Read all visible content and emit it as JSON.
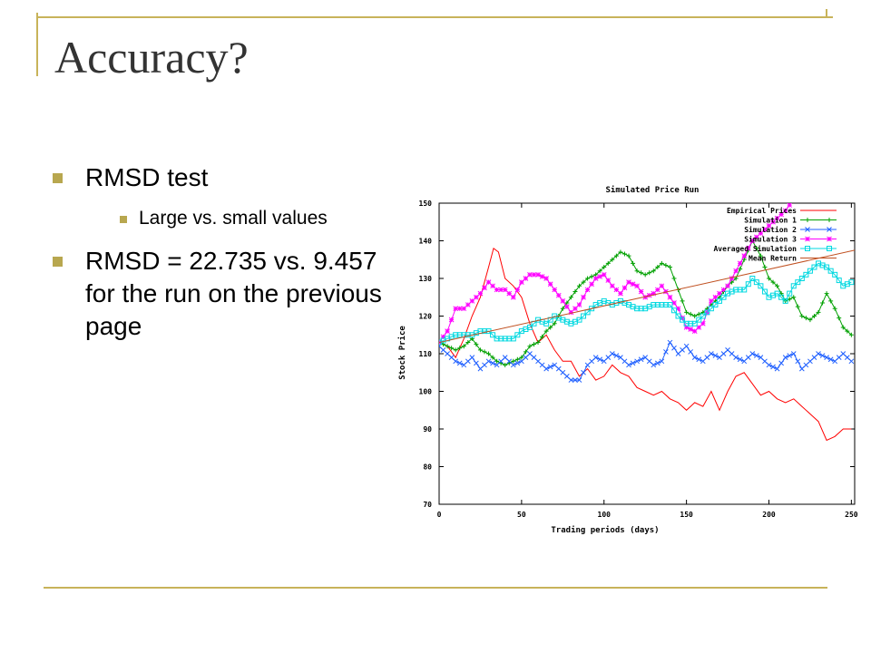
{
  "slide": {
    "title": "Accuracy?",
    "bullets": [
      {
        "level": 1,
        "text": "RMSD test"
      },
      {
        "level": 2,
        "text": "Large vs. small values"
      },
      {
        "level": 1,
        "text": "RMSD = 22.735 vs. 9.457 for the run on the previous page"
      }
    ]
  },
  "colors": {
    "accent": "#b8a74f",
    "line": "#c8b35a",
    "title": "#333333"
  },
  "chart_data": {
    "type": "line",
    "title": "Simulated Price Run",
    "xlabel": "Trading periods (days)",
    "ylabel": "Stock Price",
    "xlim": [
      0,
      252
    ],
    "ylim": [
      70,
      150
    ],
    "xticks": [
      0,
      50,
      100,
      150,
      200,
      250
    ],
    "yticks": [
      70,
      80,
      90,
      100,
      110,
      120,
      130,
      140,
      150
    ],
    "legend_position": "top-right",
    "series": [
      {
        "name": "Empirical Prices",
        "color": "#ff0000",
        "marker": "none",
        "x": [
          0,
          5,
          10,
          15,
          20,
          25,
          30,
          33,
          36,
          40,
          45,
          50,
          55,
          60,
          65,
          70,
          75,
          80,
          85,
          90,
          95,
          100,
          105,
          110,
          115,
          120,
          125,
          130,
          135,
          140,
          145,
          150,
          155,
          160,
          165,
          170,
          175,
          180,
          185,
          190,
          195,
          200,
          205,
          210,
          215,
          220,
          225,
          230,
          235,
          240,
          245,
          250
        ],
        "y": [
          113,
          112,
          109,
          114,
          120,
          125,
          133,
          138,
          137,
          130,
          128,
          125,
          118,
          113,
          115,
          111,
          108,
          108,
          104,
          106,
          103,
          104,
          107,
          105,
          104,
          101,
          100,
          99,
          100,
          98,
          97,
          95,
          97,
          96,
          100,
          95,
          100,
          104,
          105,
          102,
          99,
          100,
          98,
          97,
          98,
          96,
          94,
          92,
          87,
          88,
          90,
          90
        ]
      },
      {
        "name": "Simulation 1",
        "color": "#00a000",
        "marker": "plus",
        "x": [
          0,
          5,
          10,
          15,
          20,
          25,
          30,
          35,
          40,
          45,
          50,
          55,
          60,
          65,
          70,
          75,
          80,
          85,
          90,
          95,
          100,
          105,
          110,
          115,
          120,
          125,
          130,
          135,
          140,
          145,
          150,
          155,
          160,
          165,
          170,
          175,
          180,
          185,
          190,
          195,
          200,
          205,
          210,
          215,
          220,
          225,
          230,
          235,
          240,
          245,
          250
        ],
        "y": [
          113,
          112,
          111,
          112,
          114,
          111,
          110,
          108,
          107,
          108,
          109,
          112,
          113,
          116,
          118,
          122,
          125,
          128,
          130,
          131,
          133,
          135,
          137,
          136,
          132,
          131,
          132,
          134,
          133,
          127,
          121,
          120,
          121,
          123,
          125,
          128,
          130,
          135,
          140,
          136,
          130,
          128,
          124,
          125,
          120,
          119,
          121,
          126,
          122,
          117,
          115
        ]
      },
      {
        "name": "Simulation 2",
        "color": "#2060ff",
        "marker": "x",
        "x": [
          0,
          5,
          10,
          15,
          20,
          25,
          30,
          35,
          40,
          45,
          50,
          55,
          60,
          65,
          70,
          75,
          80,
          85,
          90,
          95,
          100,
          105,
          110,
          115,
          120,
          125,
          130,
          135,
          140,
          145,
          150,
          155,
          160,
          165,
          170,
          175,
          180,
          185,
          190,
          195,
          200,
          205,
          210,
          215,
          220,
          225,
          230,
          235,
          240,
          245,
          250
        ],
        "y": [
          112,
          110,
          108,
          107,
          109,
          106,
          108,
          107,
          109,
          107,
          108,
          110,
          108,
          106,
          107,
          105,
          103,
          103,
          107,
          109,
          108,
          110,
          109,
          107,
          108,
          109,
          107,
          108,
          113,
          110,
          112,
          109,
          108,
          110,
          109,
          111,
          109,
          108,
          110,
          109,
          107,
          106,
          109,
          110,
          106,
          108,
          110,
          109,
          108,
          110,
          108
        ]
      },
      {
        "name": "Simulation 3",
        "color": "#ff00ff",
        "marker": "star",
        "x": [
          0,
          5,
          10,
          15,
          20,
          25,
          30,
          35,
          40,
          45,
          50,
          55,
          60,
          65,
          70,
          75,
          80,
          85,
          90,
          95,
          100,
          105,
          110,
          115,
          120,
          125,
          130,
          135,
          140,
          145,
          150,
          155,
          160,
          165,
          170,
          175,
          180,
          185,
          190,
          195,
          200,
          205,
          210,
          215
        ],
        "y": [
          113,
          116,
          122,
          122,
          124,
          126,
          129,
          127,
          127,
          125,
          129,
          131,
          131,
          130,
          127,
          124,
          121,
          123,
          127,
          130,
          131,
          128,
          126,
          129,
          128,
          125,
          126,
          128,
          125,
          122,
          117,
          116,
          118,
          124,
          126,
          128,
          132,
          136,
          140,
          142,
          144,
          146,
          148,
          151
        ]
      },
      {
        "name": "Averaged Simulation",
        "color": "#00d8e0",
        "marker": "square",
        "x": [
          0,
          5,
          10,
          15,
          20,
          25,
          30,
          35,
          40,
          45,
          50,
          55,
          60,
          65,
          70,
          75,
          80,
          85,
          90,
          95,
          100,
          105,
          110,
          115,
          120,
          125,
          130,
          135,
          140,
          145,
          150,
          155,
          160,
          165,
          170,
          175,
          180,
          185,
          190,
          195,
          200,
          205,
          210,
          215,
          220,
          225,
          230,
          235,
          240,
          245,
          250
        ],
        "y": [
          113,
          114,
          115,
          115,
          115,
          116,
          116,
          114,
          114,
          114,
          116,
          117,
          119,
          118,
          120,
          119,
          118,
          119,
          121,
          123,
          124,
          123,
          124,
          123,
          122,
          122,
          123,
          123,
          123,
          120,
          118,
          118,
          120,
          122,
          124,
          126,
          127,
          127,
          130,
          128,
          125,
          126,
          124,
          128,
          130,
          132,
          134,
          133,
          131,
          128,
          129
        ]
      },
      {
        "name": "Mean Return",
        "color": "#c05020",
        "marker": "none",
        "x": [
          0,
          252
        ],
        "y": [
          113,
          137.5
        ]
      }
    ]
  }
}
